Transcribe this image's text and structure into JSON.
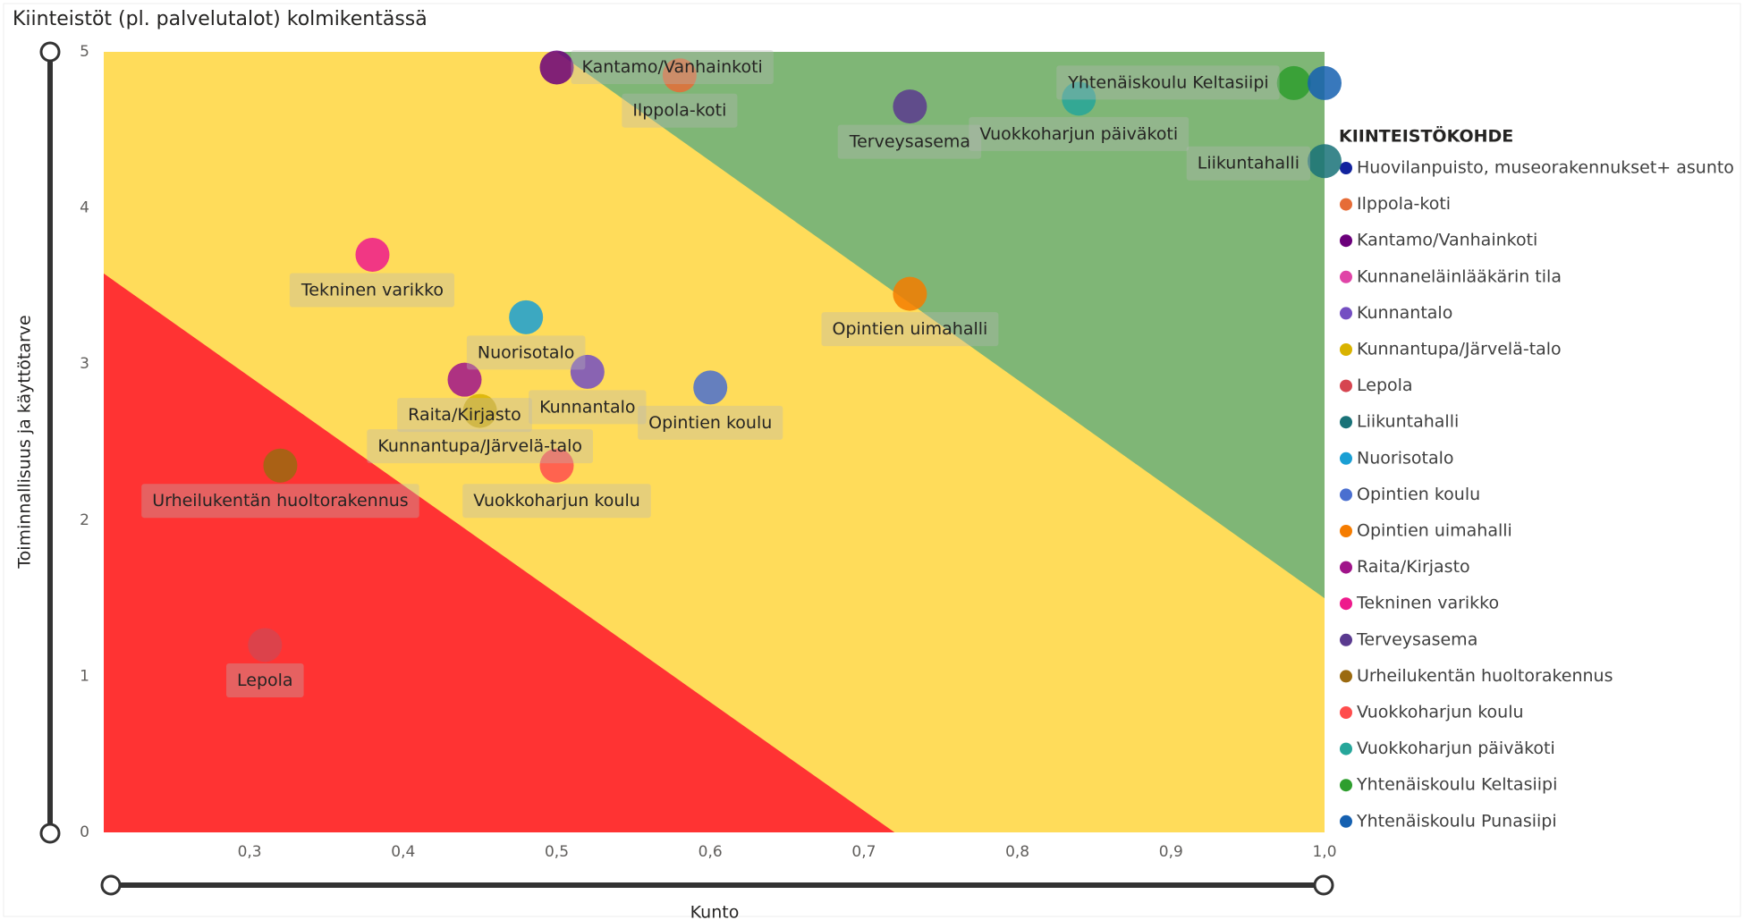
{
  "chart_data": {
    "type": "scatter",
    "title": "Kiinteistöt (pl. palvelutalot) kolmikentässä",
    "x_label": "Kunto",
    "y_label": "Toiminnallisuus ja käyttötarve",
    "legend_title": "KIINTEISTÖKOHDE",
    "legend_position": "right",
    "xlim": [
      0.205,
      1.0
    ],
    "ylim": [
      0,
      5
    ],
    "xticks": [
      {
        "value": 0.3,
        "label": "0,3"
      },
      {
        "value": 0.4,
        "label": "0,4"
      },
      {
        "value": 0.5,
        "label": "0,5"
      },
      {
        "value": 0.6,
        "label": "0,6"
      },
      {
        "value": 0.7,
        "label": "0,7"
      },
      {
        "value": 0.8,
        "label": "0,8"
      },
      {
        "value": 0.9,
        "label": "0,9"
      },
      {
        "value": 1.0,
        "label": "1,0"
      }
    ],
    "yticks": [
      0,
      1,
      2,
      3,
      4,
      5
    ],
    "zones": [
      {
        "color": "#7fb676",
        "boundary": [
          [
            0.5,
            5
          ],
          [
            1.0,
            1.5
          ]
        ]
      },
      {
        "color": "#ffdc5a",
        "boundary": [
          [
            0.205,
            3.58
          ],
          [
            0.72,
            0
          ]
        ]
      },
      {
        "color": "#ff3333",
        "boundary": [
          [
            0.205,
            0
          ],
          [
            0.205,
            0
          ]
        ]
      }
    ],
    "series": [
      {
        "name": "Huovilanpuisto, museorakennukset+ asunto",
        "color": "#12239e",
        "x": [
          null
        ],
        "values": [
          null
        ]
      },
      {
        "name": "Ilppola-koti",
        "color": "#e66c37",
        "x": [
          0.58
        ],
        "values": [
          4.85
        ]
      },
      {
        "name": "Kantamo/Vanhainkoti",
        "color": "#6b007b",
        "x": [
          0.5
        ],
        "values": [
          4.9
        ]
      },
      {
        "name": "Kunnaneläinlääkärin tila",
        "color": "#e044a7",
        "x": [
          null
        ],
        "values": [
          null
        ]
      },
      {
        "name": "Kunnantalo",
        "color": "#744ec2",
        "x": [
          0.52
        ],
        "values": [
          2.95
        ]
      },
      {
        "name": "Kunnantupa/Järvelä-talo",
        "color": "#d9b300",
        "x": [
          0.45
        ],
        "values": [
          2.7
        ]
      },
      {
        "name": "Lepola",
        "color": "#d64550",
        "x": [
          0.31
        ],
        "values": [
          1.2
        ]
      },
      {
        "name": "Liikuntahalli",
        "color": "#197278",
        "x": [
          1.0
        ],
        "values": [
          4.3
        ]
      },
      {
        "name": "Nuorisotalo",
        "color": "#1a9fd4",
        "x": [
          0.48
        ],
        "values": [
          3.3
        ]
      },
      {
        "name": "Opintien koulu",
        "color": "#4a6fd0",
        "x": [
          0.6
        ],
        "values": [
          2.85
        ]
      },
      {
        "name": "Opintien uimahalli",
        "color": "#f57c00",
        "x": [
          0.73
        ],
        "values": [
          3.45
        ]
      },
      {
        "name": "Raita/Kirjasto",
        "color": "#a0148a",
        "x": [
          0.44
        ],
        "values": [
          2.9
        ]
      },
      {
        "name": "Tekninen varikko",
        "color": "#ee1a8c",
        "x": [
          0.38
        ],
        "values": [
          3.7
        ]
      },
      {
        "name": "Terveysasema",
        "color": "#5a3a8f",
        "x": [
          0.73
        ],
        "values": [
          4.65
        ]
      },
      {
        "name": "Urheilukentän huoltorakennus",
        "color": "#9b6a10",
        "x": [
          0.32
        ],
        "values": [
          2.35
        ]
      },
      {
        "name": "Vuokkoharjun koulu",
        "color": "#ff4d4d",
        "x": [
          0.5
        ],
        "values": [
          2.35
        ]
      },
      {
        "name": "Vuokkoharjun päiväkoti",
        "color": "#26a69a",
        "x": [
          0.84
        ],
        "values": [
          4.7
        ]
      },
      {
        "name": "Yhtenäiskoulu Keltasiipi",
        "color": "#2e9e2e",
        "x": [
          0.98
        ],
        "values": [
          4.8
        ]
      },
      {
        "name": "Yhtenäiskoulu Punasiipi",
        "color": "#1560b0",
        "x": [
          1.0
        ],
        "values": [
          4.8
        ]
      }
    ]
  }
}
